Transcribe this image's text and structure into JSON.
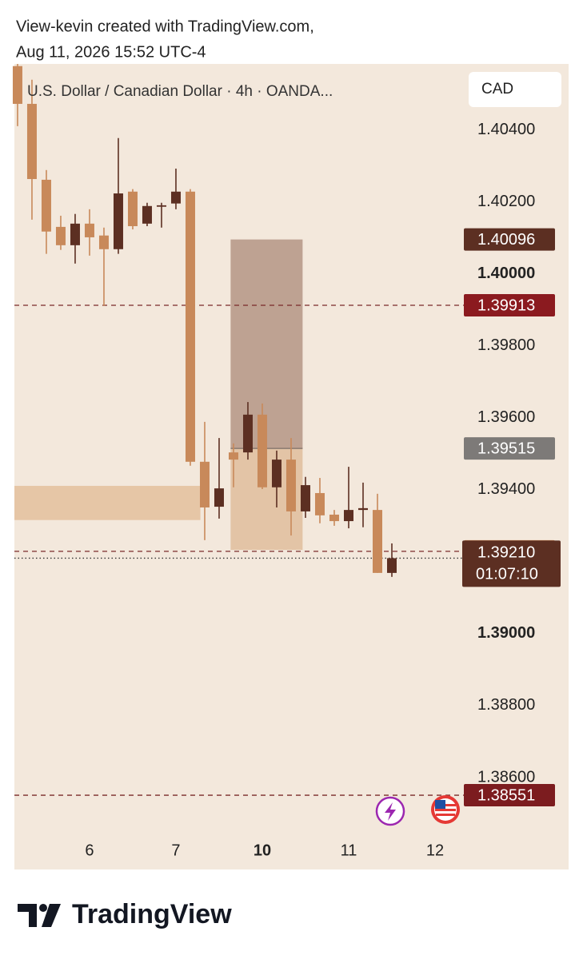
{
  "header": {
    "author_line": "View-kevin created with TradingView.com,",
    "timestamp": "Aug 11, 2026 15:52 UTC-4"
  },
  "footer": {
    "brand": "TradingView"
  },
  "chart_data": {
    "type": "candlestick",
    "title": "U.S. Dollar / Canadian Dollar · 4h · OANDA...",
    "currency": "CAD",
    "up_color": "#5c2f22",
    "down_color": "#c8895a",
    "xlim": [
      -0.22,
      31
    ],
    "xticks": [
      {
        "value": 5,
        "label": "6"
      },
      {
        "value": 11,
        "label": "7"
      },
      {
        "value": 17,
        "label": "10",
        "bold": true
      },
      {
        "value": 23,
        "label": "11"
      },
      {
        "value": 29,
        "label": "12"
      }
    ],
    "ylim": [
      1.3844,
      1.40584
    ],
    "yticks": [
      {
        "value": 1.404,
        "label": "1.40400"
      },
      {
        "value": 1.402,
        "label": "1.40200"
      },
      {
        "value": 1.4,
        "label": "1.40000",
        "bold": true
      },
      {
        "value": 1.398,
        "label": "1.39800"
      },
      {
        "value": 1.396,
        "label": "1.39600"
      },
      {
        "value": 1.394,
        "label": "1.39400"
      },
      {
        "value": 1.39,
        "label": "1.39000",
        "bold": true
      },
      {
        "value": 1.388,
        "label": "1.38800"
      },
      {
        "value": 1.386,
        "label": "1.38600"
      }
    ],
    "open": [
      1.40578,
      1.40473,
      1.40262,
      1.40131,
      1.4008,
      1.4014,
      1.40107,
      1.40069,
      1.40229,
      1.4014,
      1.40187,
      1.40196,
      1.40229,
      1.39478,
      1.39353,
      1.39504,
      1.39504,
      1.39609,
      1.39407,
      1.39484,
      1.3934,
      1.39391,
      1.39331,
      1.39313,
      1.39344,
      1.39344,
      1.39169
    ],
    "high": [
      1.40584,
      1.4054,
      1.40289,
      1.40162,
      1.40167,
      1.4018,
      1.40129,
      1.40378,
      1.40236,
      1.40198,
      1.40198,
      1.40293,
      1.40236,
      1.39589,
      1.39544,
      1.39529,
      1.39644,
      1.3964,
      1.39509,
      1.39544,
      1.39436,
      1.39433,
      1.39344,
      1.39464,
      1.3942,
      1.39389,
      1.39251
    ],
    "low": [
      1.40411,
      1.40151,
      1.40056,
      1.40067,
      1.40029,
      1.40051,
      1.39911,
      1.40056,
      1.40124,
      1.40133,
      1.40129,
      1.4018,
      1.39467,
      1.3926,
      1.3932,
      1.39407,
      1.39484,
      1.39402,
      1.39351,
      1.39273,
      1.39322,
      1.39307,
      1.393,
      1.39293,
      1.39296,
      1.39169,
      1.39158
    ],
    "close": [
      1.40473,
      1.40264,
      1.40118,
      1.4008,
      1.4014,
      1.40102,
      1.40069,
      1.40224,
      1.40133,
      1.40189,
      1.40191,
      1.40229,
      1.39478,
      1.39351,
      1.39404,
      1.39484,
      1.39609,
      1.39407,
      1.39484,
      1.3934,
      1.39413,
      1.39329,
      1.39313,
      1.39344,
      1.39349,
      1.39169,
      1.3921
    ],
    "zone": {
      "start": -0.22,
      "end": 12.7,
      "top": 1.39411,
      "bottom": 1.39316,
      "color": "#e3bf9c"
    },
    "position": {
      "start": 14.8,
      "end": 19.8,
      "top": 1.40096,
      "entry": 1.39515,
      "bottom": 1.39233,
      "risk_color": "#b09080",
      "reward_color": "#deb894"
    },
    "price_labels": [
      {
        "value": 1.40096,
        "color": "#5c2f22"
      },
      {
        "value": 1.39913,
        "color": "#8b1a1f",
        "line": "dashed"
      },
      {
        "value": 1.39515,
        "color": "#7d7a78"
      },
      {
        "value": 1.39229,
        "color": "#c8895a",
        "line": "dashed"
      },
      {
        "value": 1.3921,
        "label": "1.39210",
        "countdown": "01:07:10",
        "color": "#5c2f22",
        "line": "dotted"
      },
      {
        "value": 1.38551,
        "color": "#7c1c1f",
        "line": "dashed"
      }
    ]
  }
}
